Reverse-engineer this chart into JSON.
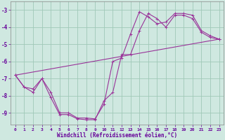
{
  "background_color": "#cfe8e0",
  "grid_color": "#a0c8b8",
  "line_color": "#993399",
  "marker_color": "#993399",
  "xlabel": "Windchill (Refroidissement éolien,°C)",
  "tick_color": "#660099",
  "ylim": [
    -9.7,
    -2.5
  ],
  "xlim": [
    -0.5,
    23.5
  ],
  "yticks": [
    -9,
    -8,
    -7,
    -6,
    -5,
    -4,
    -3
  ],
  "xticks": [
    0,
    1,
    2,
    3,
    4,
    5,
    6,
    7,
    8,
    9,
    10,
    11,
    12,
    13,
    14,
    15,
    16,
    17,
    18,
    19,
    20,
    21,
    22,
    23
  ],
  "curve1_x": [
    0,
    1,
    2,
    3,
    4,
    5,
    6,
    7,
    8,
    9,
    10,
    11,
    12,
    13,
    14,
    15,
    16,
    17,
    18,
    19,
    20,
    21,
    22,
    23
  ],
  "curve1_y": [
    -6.8,
    -7.5,
    -7.6,
    -7.0,
    -7.8,
    -9.0,
    -9.0,
    -9.3,
    -9.3,
    -9.35,
    -8.5,
    -6.0,
    -5.8,
    -4.4,
    -3.1,
    -3.4,
    -3.8,
    -3.7,
    -3.2,
    -3.2,
    -3.3,
    -4.2,
    -4.5,
    -4.7
  ],
  "curve2_x": [
    0,
    1,
    2,
    3,
    4,
    5,
    6,
    7,
    8,
    9,
    10,
    11,
    12,
    13,
    14,
    15,
    16,
    17,
    18,
    19,
    20,
    21,
    22,
    23
  ],
  "curve2_y": [
    -6.8,
    -7.5,
    -7.8,
    -7.0,
    -8.1,
    -9.1,
    -9.1,
    -9.35,
    -9.4,
    -9.4,
    -8.3,
    -7.8,
    -5.6,
    -5.6,
    -4.2,
    -3.2,
    -3.5,
    -4.0,
    -3.3,
    -3.3,
    -3.5,
    -4.3,
    -4.6,
    -4.7
  ],
  "curve3_x": [
    0,
    23
  ],
  "curve3_y": [
    -6.8,
    -4.7
  ]
}
